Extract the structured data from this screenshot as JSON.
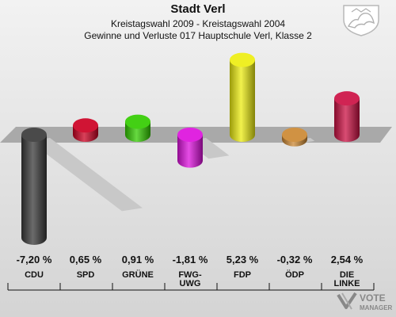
{
  "title": "Stadt Verl",
  "subtitle1": "Kreistagswahl 2009 - Kreistagswahl 2004",
  "subtitle2": "Gewinne und Verluste 017 Hauptschule Verl, Klasse 2",
  "logo": {
    "line1": "VOTE",
    "line2": "MANAGER"
  },
  "chart_data": {
    "type": "bar",
    "categories": [
      "CDU",
      "SPD",
      "GRÜNE",
      "FWG-UWG",
      "FDP",
      "ÖDP",
      "DIE LINKE"
    ],
    "category_lines": [
      [
        "CDU"
      ],
      [
        "SPD"
      ],
      [
        "GRÜNE"
      ],
      [
        "FWG-",
        "UWG"
      ],
      [
        "FDP"
      ],
      [
        "ÖDP"
      ],
      [
        "DIE",
        "LINKE"
      ]
    ],
    "values": [
      -7.2,
      0.65,
      0.91,
      -1.81,
      5.23,
      -0.32,
      2.54
    ],
    "value_labels": [
      "-7,20 %",
      "0,65 %",
      "0,91 %",
      "-1,81 %",
      "5,23 %",
      "-0,32 %",
      "2,54 %"
    ],
    "colors": [
      "#3a3a3a",
      "#cc0022",
      "#33cc00",
      "#dd11dd",
      "#eeee11",
      "#cc8833",
      "#cc1144"
    ],
    "grid": false,
    "legend": "none"
  }
}
